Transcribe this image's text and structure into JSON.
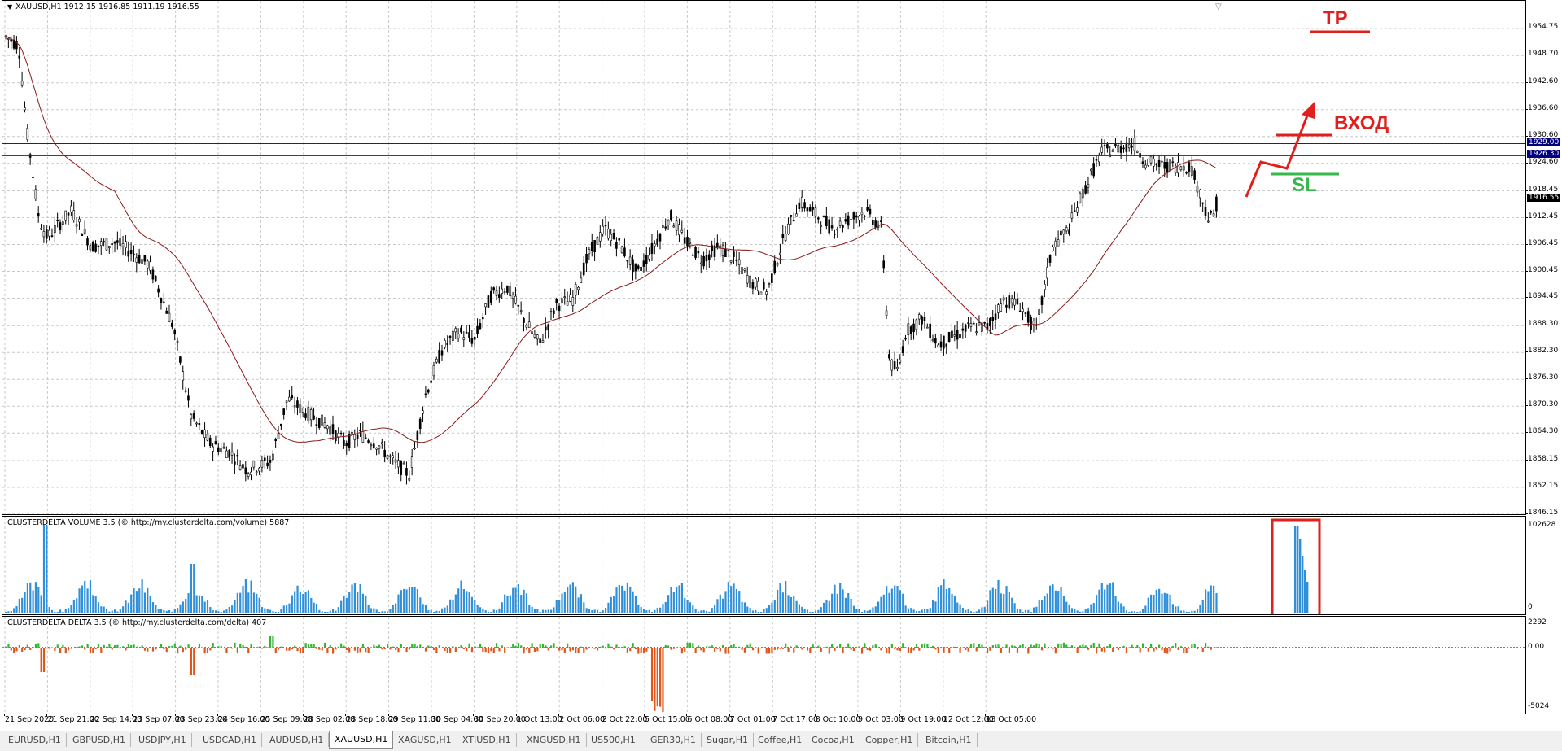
{
  "main": {
    "title": "XAUUSD,H1  1912.15 1916.85 1911.19 1916.55",
    "y_labels": [
      "1954.75",
      "1948.70",
      "1942.60",
      "1936.60",
      "1930.60",
      "1924.60",
      "1918.45",
      "1912.45",
      "1906.45",
      "1900.45",
      "1894.45",
      "1888.30",
      "1882.30",
      "1876.30",
      "1870.30",
      "1864.30",
      "1858.15",
      "1852.15",
      "1846.15"
    ],
    "hline_upper": "1929.00",
    "hline_lower": "1926.30",
    "current_price": "1916.55",
    "colors": {
      "candle": "#000000",
      "ma": "#8b1a1a",
      "hline": "#1c1c8c",
      "grid": "#c8c8c8",
      "hl_bg": "#000080",
      "current_bg": "#000000"
    },
    "annotations": {
      "tp": "TP",
      "entry": "ВХОД",
      "sl": "SL"
    }
  },
  "volume": {
    "title": "CLUSTERDELTA VOLUME 3.5 (© http://my.clusterdelta.com/volume) 5887",
    "y_labels": [
      "102628",
      "0"
    ],
    "color": "#2f8fd8"
  },
  "delta": {
    "title": "CLUSTERDELTA DELTA 3.5 (© http://my.clusterdelta.com/delta) 407",
    "y_labels": [
      "2292",
      "0.00",
      "-5024"
    ],
    "pos_color": "#34b534",
    "neg_color": "#e0561a"
  },
  "x_labels": [
    "21 Sep 2020",
    "21 Sep 21:00",
    "22 Sep 14:00",
    "23 Sep 07:00",
    "23 Sep 23:00",
    "24 Sep 16:00",
    "25 Sep 09:00",
    "28 Sep 02:00",
    "28 Sep 18:00",
    "29 Sep 11:00",
    "30 Sep 04:00",
    "30 Sep 20:00",
    "1 Oct 13:00",
    "2 Oct 06:00",
    "2 Oct 22:00",
    "5 Oct 15:00",
    "6 Oct 08:00",
    "7 Oct 01:00",
    "7 Oct 17:00",
    "8 Oct 10:00",
    "9 Oct 03:00",
    "9 Oct 19:00",
    "12 Oct 12:00",
    "13 Oct 05:00"
  ],
  "tabs": [
    "EURUSD,H1",
    "GBPUSD,H1",
    "USDJPY,H1",
    "USDCAD,H1",
    "AUDUSD,H1",
    "XAUUSD,H1",
    "XAGUSD,H1",
    "XTIUSD,H1",
    "XNGUSD,H1",
    "US500,H1",
    "GER30,H1",
    "Sugar,H1",
    "Coffee,H1",
    "Cocoa,H1",
    "Copper,H1",
    "Bitcoin,H1"
  ],
  "active_tab": "XAUUSD,H1"
}
